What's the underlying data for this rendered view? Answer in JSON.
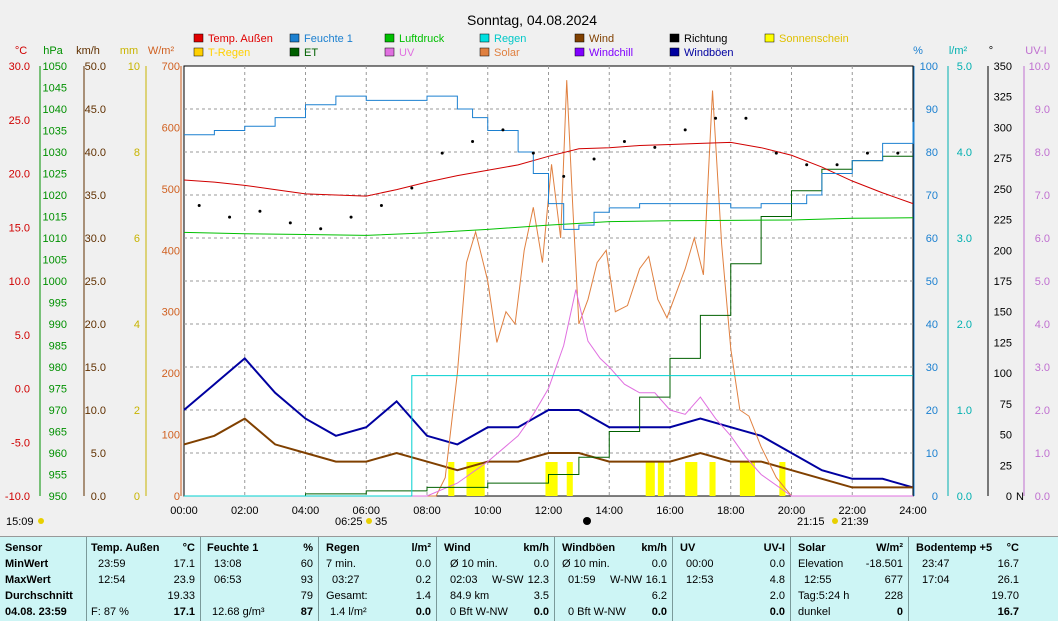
{
  "chart_data": {
    "type": "line",
    "title": "Sonntag, 04.08.2024",
    "x_ticks": [
      "00:00",
      "02:00",
      "04:00",
      "06:00",
      "08:00",
      "10:00",
      "12:00",
      "14:00",
      "16:00",
      "18:00",
      "20:00",
      "22:00",
      "24:00"
    ],
    "axes": {
      "temp": {
        "unit": "°C",
        "color": "#d00000",
        "ticks": [
          "30.0",
          "25.0",
          "20.0",
          "15.0",
          "10.0",
          "5.0",
          "0.0",
          "-5.0",
          "-10.0"
        ]
      },
      "pressure": {
        "unit": "hPa",
        "color": "#009000",
        "ticks": [
          "1050",
          "1045",
          "1040",
          "1035",
          "1030",
          "1025",
          "1020",
          "1015",
          "1010",
          "1005",
          "1000",
          "995",
          "990",
          "985",
          "980",
          "975",
          "970",
          "965",
          "960",
          "955",
          "950"
        ]
      },
      "wind": {
        "unit": "km/h",
        "color": "#603000",
        "ticks": [
          "50.0",
          "45.0",
          "40.0",
          "35.0",
          "30.0",
          "25.0",
          "20.0",
          "15.0",
          "10.0",
          "5.0",
          "0.0"
        ]
      },
      "et": {
        "unit": "mm",
        "color": "#c8b400",
        "ticks": [
          "10",
          "8",
          "6",
          "4",
          "2",
          "0"
        ]
      },
      "solar": {
        "unit": "W/m²",
        "color": "#d06020",
        "ticks": [
          "700",
          "600",
          "500",
          "400",
          "300",
          "200",
          "100",
          "0"
        ]
      },
      "humidity": {
        "unit": "%",
        "color": "#1c80d0",
        "ticks": [
          "100",
          "90",
          "80",
          "70",
          "60",
          "50",
          "40",
          "30",
          "20",
          "10",
          "0"
        ]
      },
      "rain": {
        "unit": "l/m²",
        "color": "#00b0b0",
        "ticks": [
          "5.0",
          "4.0",
          "3.0",
          "2.0",
          "1.0",
          "0.0"
        ]
      },
      "direction": {
        "unit": "°",
        "color": "#000000",
        "ticks": [
          "350",
          "325",
          "300",
          "275",
          "250",
          "225",
          "200",
          "175",
          "150",
          "125",
          "100",
          "75",
          "50",
          "25",
          "0"
        ],
        "bottom_label": "N"
      },
      "uv": {
        "unit": "UV-I",
        "color": "#c070d0",
        "ticks": [
          "10.0",
          "9.0",
          "8.0",
          "7.0",
          "6.0",
          "5.0",
          "4.0",
          "3.0",
          "2.0",
          "1.0",
          "0.0"
        ]
      }
    },
    "legend": [
      {
        "name": "Temp. Außen",
        "color": "#e00000"
      },
      {
        "name": "Feuchte 1",
        "color": "#1c80d0"
      },
      {
        "name": "Luftdruck",
        "color": "#00c000"
      },
      {
        "name": "Regen",
        "color": "#00e0e0"
      },
      {
        "name": "Wind",
        "color": "#804000"
      },
      {
        "name": "Richtung",
        "color": "#000000"
      },
      {
        "name": "Sonnenschein",
        "color": "#ffff00"
      },
      {
        "name": "T-Regen",
        "color": "#ffd000"
      },
      {
        "name": "ET",
        "color": "#006000"
      },
      {
        "name": "UV",
        "color": "#e070e0"
      },
      {
        "name": "Solar",
        "color": "#e08040"
      },
      {
        "name": "Windchill",
        "color": "#8000ff"
      },
      {
        "name": "Windböen",
        "color": "#0000a0"
      }
    ],
    "series": {
      "temp": {
        "x": [
          0,
          1,
          2,
          3,
          4,
          5,
          6,
          7,
          8,
          9,
          10,
          11,
          12,
          13,
          14,
          15,
          16,
          17,
          18,
          19,
          20,
          21,
          22,
          23,
          24
        ],
        "values": [
          19.4,
          19.2,
          18.9,
          18.5,
          18.1,
          18.0,
          17.9,
          18.5,
          19.2,
          19.8,
          20.3,
          20.8,
          21.6,
          22.3,
          22.4,
          22.6,
          22.7,
          22.8,
          22.9,
          22.4,
          21.7,
          20.6,
          19.3,
          18.2,
          17.2
        ]
      },
      "humidity": {
        "x": [
          0,
          1,
          2,
          3,
          4,
          5,
          6,
          7,
          8,
          9,
          9.5,
          10,
          11,
          11.5,
          12,
          12.5,
          13,
          13.5,
          14,
          15,
          16,
          17,
          18,
          19,
          20,
          20.5,
          21,
          22,
          23,
          24
        ],
        "values": [
          84,
          85,
          86,
          88,
          91,
          93,
          92,
          92,
          93,
          90,
          88,
          85,
          80,
          75,
          68,
          62,
          63,
          66,
          67,
          68,
          68,
          68,
          67,
          68,
          68,
          70,
          75,
          78,
          82,
          87
        ]
      },
      "pressure": {
        "x": [
          0,
          2,
          4,
          6,
          8,
          10,
          12,
          14,
          16,
          18,
          20,
          22,
          24
        ],
        "values": [
          1011.3,
          1011.0,
          1010.8,
          1010.6,
          1011.2,
          1012.0,
          1013.0,
          1013.8,
          1014.0,
          1014.1,
          1014.2,
          1014.6,
          1014.7
        ]
      },
      "rain": {
        "x": [
          0,
          6.5,
          7.5,
          24
        ],
        "values": [
          0.0,
          0.0,
          1.4,
          1.4
        ]
      },
      "et": {
        "x": [
          0,
          2,
          4,
          6,
          8,
          10,
          12,
          13,
          14,
          15,
          16,
          17,
          18,
          19,
          20,
          21,
          22,
          23,
          24
        ],
        "values": [
          0.0,
          0.0,
          0.05,
          0.12,
          0.2,
          0.3,
          0.5,
          0.9,
          1.5,
          2.3,
          3.2,
          4.2,
          5.4,
          6.5,
          7.1,
          7.6,
          7.8,
          7.9,
          7.9
        ]
      },
      "solar": {
        "x": [
          0,
          8.3,
          8.6,
          9.0,
          9.3,
          9.6,
          10.0,
          10.3,
          10.6,
          10.9,
          11.2,
          11.5,
          11.8,
          12.1,
          12.4,
          12.6,
          12.8,
          13.0,
          13.3,
          13.6,
          13.9,
          14.2,
          14.6,
          15.0,
          15.3,
          15.6,
          15.9,
          16.2,
          16.5,
          16.8,
          17.1,
          17.4,
          17.7,
          18.0,
          18.3,
          18.6,
          19.0,
          19.5,
          20.0,
          24
        ],
        "values": [
          0,
          0,
          30,
          200,
          380,
          430,
          350,
          250,
          300,
          280,
          400,
          470,
          380,
          540,
          420,
          677,
          470,
          280,
          320,
          380,
          400,
          300,
          310,
          370,
          390,
          320,
          290,
          330,
          370,
          420,
          360,
          660,
          410,
          240,
          140,
          130,
          80,
          30,
          0,
          0
        ]
      },
      "uv": {
        "x": [
          0,
          8.0,
          9.0,
          10.0,
          11.0,
          11.5,
          12.0,
          12.5,
          12.9,
          13.3,
          13.7,
          14.0,
          14.5,
          15.0,
          15.5,
          16.0,
          16.5,
          17.0,
          17.5,
          18.0,
          18.5,
          19.0,
          20.0,
          24
        ],
        "values": [
          0,
          0,
          0.3,
          0.8,
          1.4,
          1.9,
          2.5,
          3.5,
          4.8,
          3.6,
          3.2,
          3.0,
          2.6,
          2.4,
          2.4,
          2.0,
          1.9,
          2.3,
          1.8,
          1.4,
          0.9,
          0.5,
          0,
          0
        ]
      },
      "wind": {
        "x": [
          0,
          1,
          2,
          3,
          4,
          5,
          6,
          7,
          8,
          9,
          10,
          11,
          12,
          13,
          14,
          15,
          16,
          17,
          18,
          19,
          20,
          21,
          22,
          23,
          24
        ],
        "values": [
          6,
          7,
          9,
          6,
          5,
          4,
          4,
          5,
          4,
          3,
          4,
          4,
          5,
          5,
          4,
          4,
          4,
          5,
          4,
          4,
          3,
          2,
          1,
          1,
          1
        ]
      },
      "gusts": {
        "x": [
          0,
          1,
          2,
          3,
          4,
          5,
          6,
          7,
          8,
          9,
          10,
          11,
          12,
          13,
          14,
          15,
          16,
          17,
          18,
          19,
          20,
          21,
          22,
          23,
          24
        ],
        "values": [
          10,
          13,
          16,
          12,
          9,
          7,
          8,
          11,
          7,
          6,
          8,
          8,
          10,
          10,
          8,
          8,
          8,
          9,
          8,
          7,
          5,
          3,
          2,
          2,
          1
        ]
      },
      "direction": {
        "x": [
          0,
          1,
          2,
          3,
          4,
          5,
          6,
          7,
          8,
          9,
          10,
          11,
          12,
          13,
          14,
          15,
          16,
          17,
          18,
          19,
          20,
          21,
          22,
          23
        ],
        "values": [
          245,
          235,
          240,
          230,
          225,
          235,
          245,
          260,
          290,
          300,
          310,
          290,
          270,
          285,
          300,
          295,
          310,
          320,
          320,
          290,
          280,
          280,
          290,
          290
        ]
      }
    },
    "top_labels": {
      "sun_left": "15:09",
      "sunrise": "06:25",
      "sunrise_min": "35",
      "sunset": "21:15",
      "sunset2": "21:39"
    }
  },
  "table": {
    "sensor": {
      "header": "Sensor",
      "rows": [
        "MinWert",
        "MaxWert",
        "Durchschnitt",
        "04.08. 23:59"
      ]
    },
    "temp": {
      "header": "Temp. Außen",
      "unit": "°C",
      "min_t": "23:59",
      "min_v": "17.1",
      "max_t": "12:54",
      "max_v": "23.9",
      "avg": "19.33",
      "cur_l": "F: 87 %",
      "cur_v": "17.1"
    },
    "feuchte": {
      "header": "Feuchte 1",
      "unit": "%",
      "min_t": "13:08",
      "min_v": "60",
      "max_t": "06:53",
      "max_v": "93",
      "avg": "79",
      "cur_l": "12.68 g/m³",
      "cur_v": "87"
    },
    "regen": {
      "header": "Regen",
      "unit": "l/m²",
      "r1_l": "7 min.",
      "r1_v": "0.0",
      "r2_l": "03:27",
      "r2_v": "0.2",
      "r3_l": "Gesamt:",
      "r3_v": "1.4",
      "cur_l": "1.4 l/m²",
      "cur_v": "0.0"
    },
    "wind": {
      "header": "Wind",
      "unit": "km/h",
      "r1_l": "Ø 10 min.",
      "r1_v": "0.0",
      "r2_t": "02:03",
      "r2_d": "W-SW",
      "r2_v": "12.3",
      "r3_l": "84.9 km",
      "r3_v": "3.5",
      "cur_l": "0 Bft W-NW",
      "cur_v": "0.0"
    },
    "gusts": {
      "header": "Windböen",
      "unit": "km/h",
      "r1_l": "Ø 10 min.",
      "r1_v": "0.0",
      "r2_t": "01:59",
      "r2_d": "W-NW",
      "r2_v": "16.1",
      "r3_v": "6.2",
      "cur_l": "0 Bft W-NW",
      "cur_v": "0.0"
    },
    "uv": {
      "header": "UV",
      "unit": "UV-I",
      "r1_t": "00:00",
      "r1_v": "0.0",
      "r2_t": "12:53",
      "r2_v": "4.8",
      "r3_v": "2.0",
      "cur_v": "0.0"
    },
    "solar": {
      "header": "Solar",
      "unit": "W/m²",
      "r1_l": "Elevation",
      "r1_v": "-18.501",
      "r2_t": "12:55",
      "r2_v": "677",
      "r3_l": "Tag:5:24 h",
      "r3_v": "228",
      "cur_l": "dunkel",
      "cur_v": "0"
    },
    "boden": {
      "header": "Bodentemp +5",
      "unit": "°C",
      "r1_t": "23:47",
      "r1_v": "16.7",
      "r2_t": "17:04",
      "r2_v": "26.1",
      "r3_v": "19.70",
      "cur_v": "16.7"
    }
  }
}
